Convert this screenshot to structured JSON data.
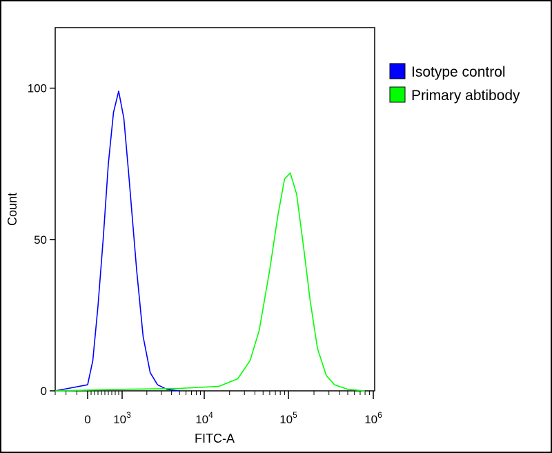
{
  "chart_data": {
    "type": "line",
    "title": "",
    "xlabel": "FITC-A",
    "ylabel": "Count",
    "x_scale": "biexponential",
    "ylim": [
      0,
      120
    ],
    "y_ticks": [
      {
        "value": 0,
        "label": "0"
      },
      {
        "value": 50,
        "label": "50"
      },
      {
        "value": 100,
        "label": "100"
      }
    ],
    "x_ticks": [
      {
        "value": 0,
        "base": "0",
        "exp": ""
      },
      {
        "value": 1000,
        "base": "10",
        "exp": "3"
      },
      {
        "value": 10000,
        "base": "10",
        "exp": "4"
      },
      {
        "value": 100000,
        "base": "10",
        "exp": "5"
      },
      {
        "value": 1000000,
        "base": "10",
        "exp": "6"
      }
    ],
    "legend_position": "right",
    "series": [
      {
        "name": "Isotype control",
        "color": "#0000ff",
        "x": [
          -300,
          0,
          150,
          300,
          450,
          600,
          750,
          900,
          1050,
          1200,
          1500,
          1800,
          2200,
          2700,
          3500,
          5000
        ],
        "y": [
          0,
          2,
          10,
          28,
          50,
          75,
          92,
          99,
          90,
          72,
          40,
          18,
          6,
          2,
          0.5,
          0
        ]
      },
      {
        "name": "Primary abtibody",
        "color": "#00ff00",
        "x": [
          -300,
          1000,
          5000,
          15000,
          25000,
          35000,
          45000,
          60000,
          75000,
          90000,
          105000,
          125000,
          150000,
          180000,
          220000,
          280000,
          350000,
          500000,
          800000
        ],
        "y": [
          0,
          0.5,
          0.8,
          1.5,
          4,
          10,
          20,
          40,
          58,
          70,
          72,
          65,
          48,
          30,
          14,
          5,
          2,
          0.5,
          0
        ]
      }
    ]
  }
}
